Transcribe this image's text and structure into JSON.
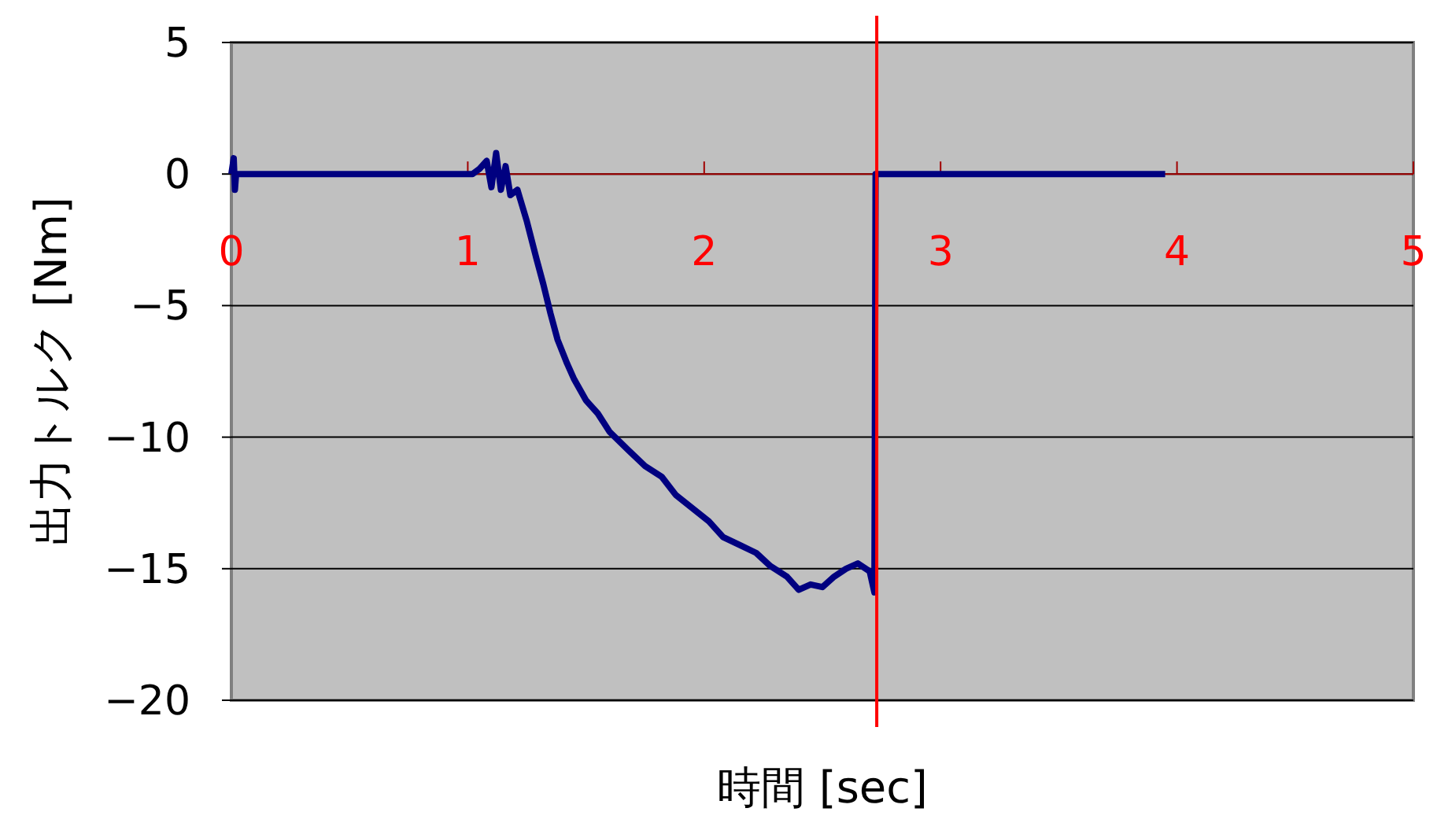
{
  "chart_data": {
    "type": "line",
    "xlabel": "時間 [sec]",
    "ylabel": "出力トルク [Nm]",
    "xlim": [
      0,
      5
    ],
    "ylim": [
      -20,
      5
    ],
    "xticks": [
      0,
      1,
      2,
      3,
      4,
      5
    ],
    "yticks": [
      5,
      0,
      {
        "value": -5,
        "label": "−5"
      },
      {
        "value": -10,
        "label": "−10"
      },
      {
        "value": -15,
        "label": "−15"
      },
      {
        "value": -20,
        "label": "−20"
      }
    ],
    "grid": "y",
    "line_style": "solid",
    "marker": "none",
    "ref_lines": [
      {
        "axis": "x",
        "value": 2.73,
        "color": "#ff0000"
      }
    ],
    "series": [
      {
        "color": "#000080",
        "x": [
          0,
          0.01,
          0.015,
          0.02,
          0.1,
          0.2,
          0.4,
          0.6,
          0.85,
          1.02,
          1.05,
          1.08,
          1.1,
          1.12,
          1.14,
          1.16,
          1.18,
          1.21,
          1.25,
          1.29,
          1.32,
          1.35,
          1.38,
          1.42,
          1.45,
          1.5,
          1.55,
          1.6,
          1.68,
          1.75,
          1.82,
          1.88,
          1.95,
          2.02,
          2.08,
          2.15,
          2.22,
          2.28,
          2.35,
          2.4,
          2.45,
          2.5,
          2.55,
          2.6,
          2.65,
          2.7,
          2.72,
          2.725,
          3.95
        ],
        "values": [
          0,
          0.6,
          -0.6,
          0,
          0,
          0,
          0,
          0,
          0,
          0,
          0.2,
          0.5,
          -0.5,
          0.8,
          -0.6,
          0.3,
          -0.8,
          -0.6,
          -1.8,
          -3.2,
          -4.2,
          -5.3,
          -6.3,
          -7.2,
          -7.8,
          -8.6,
          -9.1,
          -9.8,
          -10.5,
          -11.1,
          -11.5,
          -12.2,
          -12.7,
          -13.2,
          -13.8,
          -14.1,
          -14.4,
          -14.9,
          -15.3,
          -15.8,
          -15.6,
          -15.7,
          -15.3,
          -15.0,
          -14.8,
          -15.1,
          -15.9,
          0,
          0
        ]
      }
    ]
  }
}
